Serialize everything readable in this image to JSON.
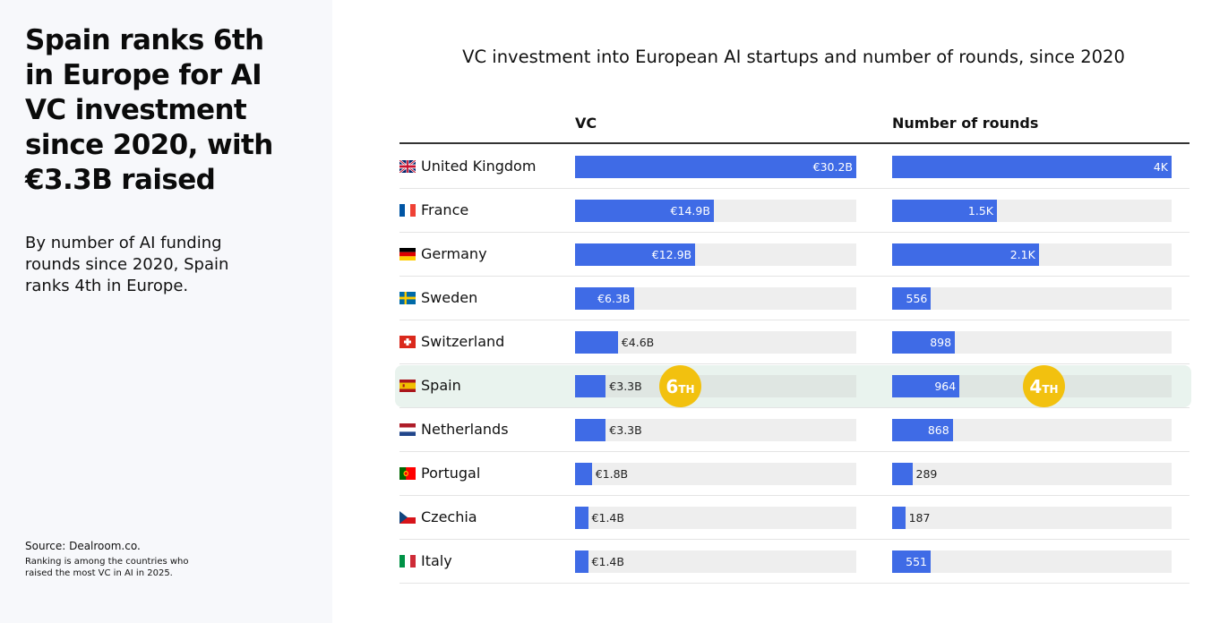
{
  "left_panel": {
    "headline": "Spain ranks 6th in Europe for AI VC investment since 2020, with €3.3B raised",
    "subtext": "By number of AI funding rounds since 2020, Spain ranks 4th in Europe.",
    "source": "Source:  Dealroom.co.",
    "note": "Ranking is among the countries  who raised the most VC in AI in 2025."
  },
  "chart_data": {
    "type": "bar",
    "title": "VC investment into European AI startups and number of rounds, since 2020",
    "columns": [
      {
        "key": "vc",
        "header": "VC",
        "unit": "€B",
        "max": 30.2
      },
      {
        "key": "rounds",
        "header": "Number of rounds",
        "unit": "rounds",
        "max": 4000
      }
    ],
    "categories": [
      "United Kingdom",
      "France",
      "Germany",
      "Sweden",
      "Switzerland",
      "Spain",
      "Netherlands",
      "Portugal",
      "Czechia",
      "Italy"
    ],
    "series": [
      {
        "name": "VC",
        "values": [
          30.2,
          14.9,
          12.9,
          6.3,
          4.6,
          3.3,
          3.3,
          1.8,
          1.4,
          1.4
        ],
        "labels": [
          "€30.2B",
          "€14.9B",
          "€12.9B",
          "€6.3B",
          "€4.6B",
          "€3.3B",
          "€3.3B",
          "€1.8B",
          "€1.4B",
          "€1.4B"
        ]
      },
      {
        "name": "Number of rounds",
        "values": [
          4000,
          1500,
          2100,
          556,
          898,
          964,
          868,
          289,
          187,
          551
        ],
        "labels": [
          "4K",
          "1.5K",
          "2.1K",
          "556",
          "898",
          "964",
          "868",
          "289",
          "187",
          "551"
        ]
      }
    ],
    "highlight": {
      "category": "Spain",
      "vc_rank": {
        "num": "6",
        "suffix": "TH"
      },
      "rounds_rank": {
        "num": "4",
        "suffix": "TH"
      }
    },
    "flags": [
      "uk-flag",
      "france-flag",
      "germany-flag",
      "sweden-flag",
      "switzerland-flag",
      "spain-flag",
      "netherlands-flag",
      "portugal-flag",
      "czechia-flag",
      "italy-flag"
    ],
    "colors": {
      "bar": "#3f6be6",
      "track": "#eeeeee",
      "highlight_row": "#e9f3ee",
      "badge": "#f2c10f"
    }
  }
}
